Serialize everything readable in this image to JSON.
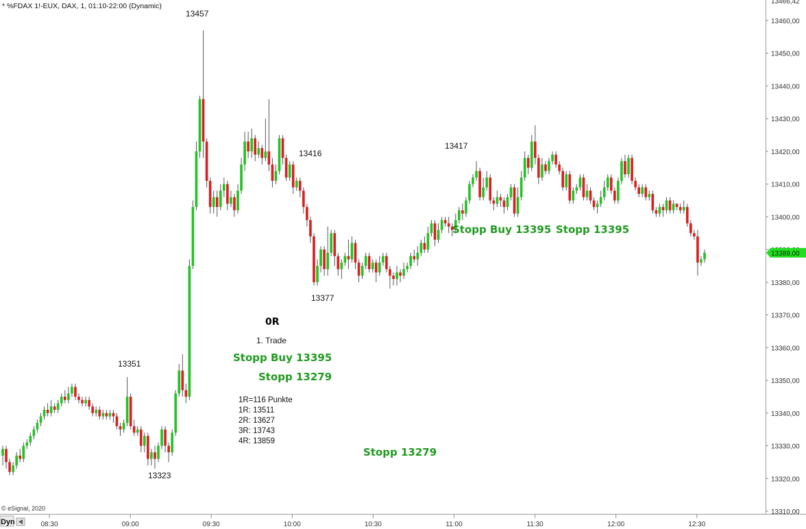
{
  "window_title": "* %FDAX 1!-EUX, DAX, 1, 01:10-22:00 (Dynamic)",
  "copyright": "© eSignal, 2020",
  "dyn_button": "Dyn",
  "colors": {
    "up": "#22c322",
    "down": "#d92020",
    "wick": "#555555",
    "price_tag": "#22dd22",
    "green_text": "#1f9a1f"
  },
  "chart_data": {
    "type": "candlestick",
    "y_ticks": [
      "13460,00",
      "13450,00",
      "13440,00",
      "13430,00",
      "13420,00",
      "13410,00",
      "13400,00",
      "13390,00",
      "13380,00",
      "13370,00",
      "13360,00",
      "13350,00",
      "13340,00",
      "13330,00",
      "13320,00",
      "13310,00"
    ],
    "y_top_partial": "13466,42",
    "ylim": [
      13310,
      13466
    ],
    "x_ticks": [
      "08:30",
      "09:00",
      "09:30",
      "10:00",
      "10:30",
      "11:00",
      "11:30",
      "12:00",
      "12:30"
    ],
    "current_price": "13389,00",
    "candles": [
      [
        13327,
        13329,
        13324,
        13330
      ],
      [
        13329,
        13325,
        13323,
        13330
      ],
      [
        13325,
        13322,
        13321,
        13326
      ],
      [
        13322,
        13324,
        13321,
        13325
      ],
      [
        13324,
        13327,
        13323,
        13328
      ],
      [
        13327,
        13326,
        13325,
        13329
      ],
      [
        13326,
        13330,
        13325,
        13331
      ],
      [
        13330,
        13331,
        13329,
        13332
      ],
      [
        13331,
        13333,
        13330,
        13334
      ],
      [
        13333,
        13335,
        13332,
        13336
      ],
      [
        13335,
        13337,
        13334,
        13338
      ],
      [
        13337,
        13339,
        13336,
        13340
      ],
      [
        13339,
        13341,
        13338,
        13342
      ],
      [
        13341,
        13340,
        13339,
        13343
      ],
      [
        13340,
        13342,
        13339,
        13344
      ],
      [
        13342,
        13341,
        13340,
        13343
      ],
      [
        13341,
        13343,
        13340,
        13344
      ],
      [
        13343,
        13345,
        13342,
        13346
      ],
      [
        13345,
        13344,
        13343,
        13347
      ],
      [
        13344,
        13346,
        13343,
        13348
      ],
      [
        13346,
        13348,
        13345,
        13349
      ],
      [
        13348,
        13345,
        13344,
        13349
      ],
      [
        13345,
        13344,
        13343,
        13346
      ],
      [
        13344,
        13343,
        13342,
        13345
      ],
      [
        13343,
        13344,
        13342,
        13345
      ],
      [
        13344,
        13342,
        13341,
        13345
      ],
      [
        13342,
        13340,
        13339,
        13343
      ],
      [
        13340,
        13341,
        13339,
        13342
      ],
      [
        13341,
        13339,
        13338,
        13342
      ],
      [
        13339,
        13340,
        13338,
        13341
      ],
      [
        13340,
        13339,
        13338,
        13341
      ],
      [
        13339,
        13340,
        13338,
        13341
      ],
      [
        13340,
        13339,
        13337,
        13341
      ],
      [
        13339,
        13336,
        13335,
        13340
      ],
      [
        13336,
        13335,
        13333,
        13337
      ],
      [
        13335,
        13337,
        13334,
        13338
      ],
      [
        13337,
        13345,
        13336,
        13351
      ],
      [
        13345,
        13336,
        13335,
        13346
      ],
      [
        13336,
        13334,
        13333,
        13338
      ],
      [
        13334,
        13335,
        13333,
        13336
      ],
      [
        13335,
        13330,
        13328,
        13336
      ],
      [
        13330,
        13333,
        13328,
        13334
      ],
      [
        13333,
        13326,
        13324,
        13334
      ],
      [
        13326,
        13328,
        13324,
        13329
      ],
      [
        13328,
        13326,
        13323,
        13330
      ],
      [
        13326,
        13330,
        13325,
        13331
      ],
      [
        13330,
        13335,
        13329,
        13336
      ],
      [
        13335,
        13330,
        13328,
        13336
      ],
      [
        13330,
        13328,
        13325,
        13331
      ],
      [
        13328,
        13334,
        13327,
        13335
      ],
      [
        13334,
        13346,
        13333,
        13347
      ],
      [
        13346,
        13353,
        13345,
        13355
      ],
      [
        13353,
        13347,
        13345,
        13358
      ],
      [
        13347,
        13345,
        13343,
        13349
      ],
      [
        13345,
        13385,
        13344,
        13387
      ],
      [
        13385,
        13403,
        13384,
        13405
      ],
      [
        13403,
        13420,
        13402,
        13423
      ],
      [
        13420,
        13436,
        13418,
        13437
      ],
      [
        13436,
        13423,
        13418,
        13457
      ],
      [
        13423,
        13411,
        13409,
        13424
      ],
      [
        13411,
        13403,
        13401,
        13412
      ],
      [
        13403,
        13406,
        13401,
        13408
      ],
      [
        13406,
        13403,
        13400,
        13408
      ],
      [
        13403,
        13408,
        13402,
        13410
      ],
      [
        13408,
        13410,
        13406,
        13412
      ],
      [
        13410,
        13404,
        13402,
        13411
      ],
      [
        13404,
        13406,
        13403,
        13408
      ],
      [
        13406,
        13402,
        13400,
        13407
      ],
      [
        13402,
        13408,
        13401,
        13410
      ],
      [
        13408,
        13416,
        13407,
        13418
      ],
      [
        13416,
        13423,
        13414,
        13426
      ],
      [
        13423,
        13420,
        13418,
        13426
      ],
      [
        13420,
        13424,
        13418,
        13427
      ],
      [
        13424,
        13419,
        13417,
        13425
      ],
      [
        13419,
        13421,
        13418,
        13423
      ],
      [
        13421,
        13418,
        13416,
        13422
      ],
      [
        13418,
        13420,
        13417,
        13430
      ],
      [
        13420,
        13416,
        13414,
        13436
      ],
      [
        13416,
        13411,
        13409,
        13418
      ],
      [
        13411,
        13414,
        13410,
        13416
      ],
      [
        13414,
        13424,
        13413,
        13425
      ],
      [
        13424,
        13418,
        13416,
        13425
      ],
      [
        13418,
        13412,
        13411,
        13419
      ],
      [
        13412,
        13416,
        13411,
        13417
      ],
      [
        13416,
        13409,
        13407,
        13417
      ],
      [
        13409,
        13411,
        13408,
        13412
      ],
      [
        13411,
        13408,
        13406,
        13412
      ],
      [
        13408,
        13403,
        13401,
        13409
      ],
      [
        13403,
        13399,
        13397,
        13404
      ],
      [
        13399,
        13394,
        13392,
        13400
      ],
      [
        13394,
        13380,
        13379,
        13395
      ],
      [
        13380,
        13385,
        13379,
        13387
      ],
      [
        13385,
        13390,
        13383,
        13391
      ],
      [
        13390,
        13384,
        13382,
        13391
      ],
      [
        13384,
        13389,
        13382,
        13397
      ],
      [
        13389,
        13395,
        13388,
        13396
      ],
      [
        13395,
        13388,
        13385,
        13396
      ],
      [
        13388,
        13384,
        13382,
        13389
      ],
      [
        13384,
        13386,
        13381,
        13387
      ],
      [
        13386,
        13388,
        13385,
        13389
      ],
      [
        13388,
        13387,
        13384,
        13393
      ],
      [
        13387,
        13392,
        13386,
        13394
      ],
      [
        13392,
        13386,
        13384,
        13393
      ],
      [
        13386,
        13382,
        13380,
        13387
      ],
      [
        13382,
        13385,
        13381,
        13386
      ],
      [
        13385,
        13388,
        13384,
        13389
      ],
      [
        13388,
        13384,
        13383,
        13389
      ],
      [
        13384,
        13386,
        13383,
        13387
      ],
      [
        13386,
        13383,
        13380,
        13387
      ],
      [
        13383,
        13386,
        13382,
        13388
      ],
      [
        13386,
        13388,
        13385,
        13389
      ],
      [
        13388,
        13384,
        13383,
        13389
      ],
      [
        13384,
        13382,
        13378,
        13385
      ],
      [
        13382,
        13381,
        13379,
        13383
      ],
      [
        13381,
        13383,
        13379,
        13385
      ],
      [
        13383,
        13382,
        13380,
        13384
      ],
      [
        13382,
        13384,
        13381,
        13386
      ],
      [
        13384,
        13385,
        13383,
        13386
      ],
      [
        13385,
        13388,
        13384,
        13389
      ],
      [
        13388,
        13387,
        13386,
        13390
      ],
      [
        13387,
        13389,
        13385,
        13391
      ],
      [
        13389,
        13392,
        13388,
        13393
      ],
      [
        13392,
        13390,
        13389,
        13394
      ],
      [
        13390,
        13395,
        13389,
        13397
      ],
      [
        13395,
        13398,
        13394,
        13399
      ],
      [
        13398,
        13393,
        13391,
        13399
      ],
      [
        13393,
        13396,
        13392,
        13398
      ],
      [
        13396,
        13399,
        13395,
        13400
      ],
      [
        13399,
        13398,
        13397,
        13400
      ],
      [
        13398,
        13397,
        13395,
        13400
      ],
      [
        13397,
        13396,
        13394,
        13398
      ],
      [
        13396,
        13399,
        13395,
        13401
      ],
      [
        13399,
        13402,
        13398,
        13403
      ],
      [
        13402,
        13401,
        13399,
        13404
      ],
      [
        13401,
        13405,
        13400,
        13406
      ],
      [
        13405,
        13410,
        13404,
        13411
      ],
      [
        13410,
        13412,
        13409,
        13413
      ],
      [
        13412,
        13414,
        13411,
        13417
      ],
      [
        13414,
        13406,
        13405,
        13415
      ],
      [
        13406,
        13409,
        13405,
        13412
      ],
      [
        13409,
        13412,
        13408,
        13414
      ],
      [
        13412,
        13405,
        13404,
        13413
      ],
      [
        13405,
        13404,
        13402,
        13406
      ],
      [
        13404,
        13406,
        13403,
        13408
      ],
      [
        13406,
        13405,
        13403,
        13407
      ],
      [
        13405,
        13403,
        13401,
        13406
      ],
      [
        13403,
        13406,
        13402,
        13407
      ],
      [
        13406,
        13409,
        13405,
        13410
      ],
      [
        13409,
        13401,
        13400,
        13410
      ],
      [
        13401,
        13406,
        13400,
        13409
      ],
      [
        13406,
        13412,
        13405,
        13414
      ],
      [
        13412,
        13418,
        13411,
        13420
      ],
      [
        13418,
        13415,
        13413,
        13419
      ],
      [
        13415,
        13423,
        13414,
        13425
      ],
      [
        13423,
        13418,
        13416,
        13428
      ],
      [
        13418,
        13412,
        13410,
        13419
      ],
      [
        13412,
        13416,
        13411,
        13418
      ],
      [
        13416,
        13414,
        13413,
        13417
      ],
      [
        13414,
        13417,
        13413,
        13418
      ],
      [
        13417,
        13419,
        13416,
        13420
      ],
      [
        13419,
        13416,
        13415,
        13420
      ],
      [
        13416,
        13414,
        13413,
        13417
      ],
      [
        13414,
        13409,
        13408,
        13415
      ],
      [
        13409,
        13413,
        13408,
        13414
      ],
      [
        13413,
        13405,
        13404,
        13414
      ],
      [
        13405,
        13408,
        13404,
        13409
      ],
      [
        13408,
        13409,
        13407,
        13410
      ],
      [
        13409,
        13412,
        13408,
        13413
      ],
      [
        13412,
        13406,
        13405,
        13413
      ],
      [
        13406,
        13408,
        13405,
        13410
      ],
      [
        13408,
        13405,
        13404,
        13409
      ],
      [
        13405,
        13403,
        13402,
        13406
      ],
      [
        13403,
        13404,
        13401,
        13405
      ],
      [
        13404,
        13406,
        13403,
        13408
      ],
      [
        13406,
        13409,
        13405,
        13411
      ],
      [
        13409,
        13412,
        13408,
        13413
      ],
      [
        13412,
        13408,
        13407,
        13413
      ],
      [
        13408,
        13405,
        13404,
        13409
      ],
      [
        13405,
        13411,
        13404,
        13412
      ],
      [
        13411,
        13417,
        13410,
        13418
      ],
      [
        13417,
        13413,
        13412,
        13419
      ],
      [
        13413,
        13418,
        13412,
        13419
      ],
      [
        13418,
        13411,
        13410,
        13419
      ],
      [
        13411,
        13409,
        13408,
        13412
      ],
      [
        13409,
        13407,
        13406,
        13410
      ],
      [
        13407,
        13409,
        13406,
        13410
      ],
      [
        13409,
        13406,
        13405,
        13410
      ],
      [
        13406,
        13407,
        13405,
        13408
      ],
      [
        13407,
        13402,
        13401,
        13408
      ],
      [
        13402,
        13401,
        13400,
        13403
      ],
      [
        13401,
        13403,
        13400,
        13404
      ],
      [
        13403,
        13402,
        13400,
        13404
      ],
      [
        13402,
        13405,
        13401,
        13406
      ],
      [
        13405,
        13402,
        13401,
        13406
      ],
      [
        13402,
        13404,
        13401,
        13405
      ],
      [
        13404,
        13403,
        13402,
        13404
      ],
      [
        13403,
        13402,
        13401,
        13404
      ],
      [
        13402,
        13403,
        13401,
        13405
      ],
      [
        13403,
        13398,
        13397,
        13404
      ],
      [
        13398,
        13395,
        13394,
        13399
      ],
      [
        13395,
        13394,
        13393,
        13396
      ],
      [
        13394,
        13386,
        13382,
        13396
      ],
      [
        13386,
        13387,
        13385,
        13388
      ],
      [
        13387,
        13389,
        13386,
        13390
      ]
    ],
    "annotations": [
      {
        "text": "13457",
        "style": "normal"
      },
      {
        "text": "13416",
        "style": "normal"
      },
      {
        "text": "13417",
        "style": "normal"
      },
      {
        "text": "13377",
        "style": "normal"
      },
      {
        "text": "13351",
        "style": "normal"
      },
      {
        "text": "13323",
        "style": "normal"
      },
      {
        "text": "0R",
        "style": "bold"
      },
      {
        "text": "1. Trade",
        "style": "normal"
      },
      {
        "text": "Stopp Buy 13395",
        "style": "green"
      },
      {
        "text": "Stopp 13279",
        "style": "green"
      },
      {
        "text": "Stopp Buy 13395",
        "style": "green"
      },
      {
        "text": "Stopp 13395",
        "style": "green"
      },
      {
        "text": "Stopp 13279",
        "style": "green"
      }
    ],
    "r_levels": [
      "1R=116 Punkte",
      "1R: 13511",
      "2R: 13627",
      "3R: 13743",
      "4R: 13859"
    ]
  }
}
